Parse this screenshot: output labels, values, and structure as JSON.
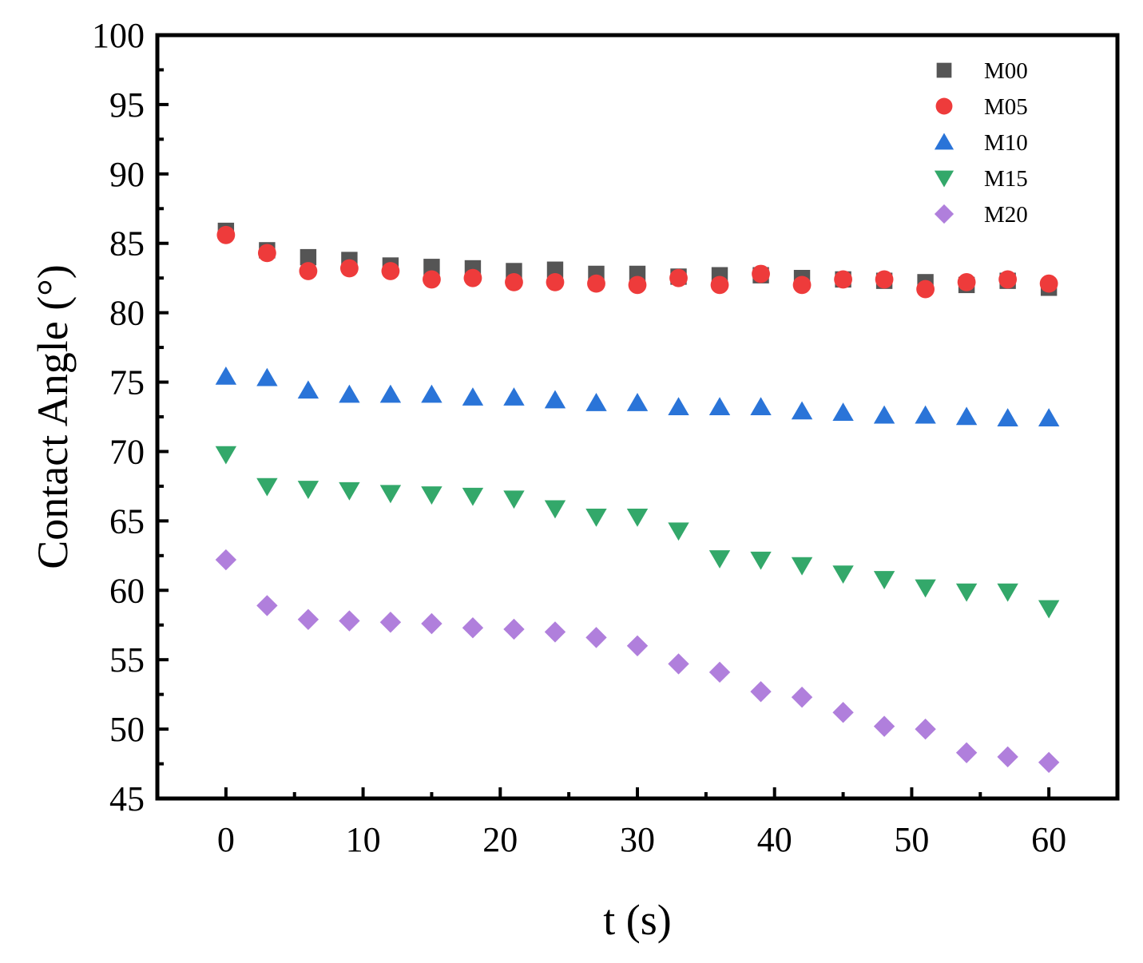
{
  "chart_data": {
    "type": "scatter",
    "xlabel": "t (s)",
    "ylabel": "Contact Angle (°)",
    "xlim": [
      -5,
      65
    ],
    "ylim": [
      45,
      100
    ],
    "xticks": [
      0,
      10,
      20,
      30,
      40,
      50,
      60
    ],
    "yticks": [
      45,
      50,
      55,
      60,
      65,
      70,
      75,
      80,
      85,
      90,
      95,
      100
    ],
    "legend_position": "top-right",
    "x": [
      0,
      3,
      6,
      9,
      12,
      15,
      18,
      21,
      24,
      27,
      30,
      33,
      36,
      39,
      42,
      45,
      48,
      51,
      54,
      57,
      60
    ],
    "series": [
      {
        "name": "M00",
        "marker": "square",
        "color": "#555555",
        "values": [
          85.9,
          84.5,
          84.0,
          83.8,
          83.4,
          83.3,
          83.2,
          83.0,
          83.1,
          82.8,
          82.8,
          82.6,
          82.7,
          82.7,
          82.5,
          82.4,
          82.3,
          82.2,
          82.0,
          82.3,
          81.8
        ]
      },
      {
        "name": "M05",
        "marker": "circle",
        "color": "#ee3b3b",
        "values": [
          85.6,
          84.3,
          83.0,
          83.2,
          83.0,
          82.4,
          82.5,
          82.2,
          82.2,
          82.1,
          82.0,
          82.5,
          82.0,
          82.8,
          82.0,
          82.4,
          82.4,
          81.7,
          82.2,
          82.4,
          82.1
        ]
      },
      {
        "name": "M10",
        "marker": "triangle-up",
        "color": "#2a74d8",
        "values": [
          75.4,
          75.3,
          74.4,
          74.1,
          74.1,
          74.1,
          73.9,
          73.9,
          73.7,
          73.5,
          73.5,
          73.2,
          73.2,
          73.2,
          72.9,
          72.8,
          72.6,
          72.6,
          72.5,
          72.4,
          72.4
        ]
      },
      {
        "name": "M15",
        "marker": "triangle-down",
        "color": "#33a86a",
        "values": [
          69.8,
          67.5,
          67.3,
          67.2,
          67.0,
          66.9,
          66.8,
          66.6,
          65.9,
          65.3,
          65.3,
          64.3,
          62.3,
          62.2,
          61.8,
          61.2,
          60.8,
          60.2,
          59.9,
          59.9,
          58.7
        ]
      },
      {
        "name": "M20",
        "marker": "diamond",
        "color": "#b07fdc",
        "values": [
          62.2,
          58.9,
          57.9,
          57.8,
          57.7,
          57.6,
          57.3,
          57.2,
          57.0,
          56.6,
          56.0,
          54.7,
          54.1,
          52.7,
          52.3,
          51.2,
          50.2,
          50.0,
          48.3,
          48.0,
          47.6
        ]
      }
    ]
  }
}
